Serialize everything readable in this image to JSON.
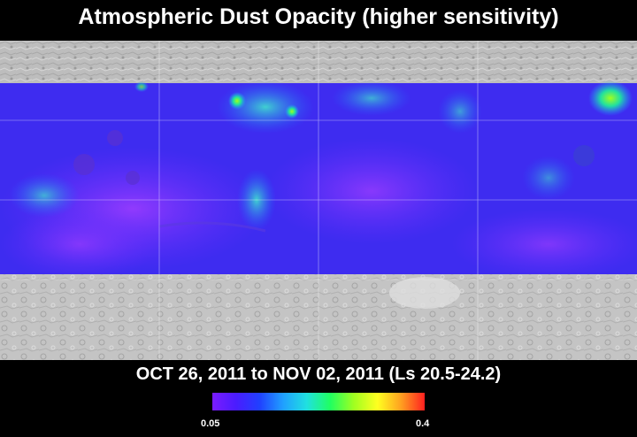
{
  "title": "Atmospheric Dust Opacity (higher sensitivity)",
  "date_range": "OCT 26, 2011 to NOV 02, 2011 (Ls 20.5-24.2)",
  "colorbar": {
    "min_label": "0.05",
    "max_label": "0.4",
    "min_value": 0.05,
    "max_value": 0.4,
    "colors": [
      "#7a1cff",
      "#4a1cff",
      "#2040ff",
      "#20a0ff",
      "#20e0e0",
      "#20ff60",
      "#a0ff20",
      "#ffff20",
      "#ffa020",
      "#ff2020"
    ]
  },
  "map": {
    "north_cap_color": "#c8c8c8",
    "south_cap_color": "#c8c8c8",
    "gridline_color": "#ffffff"
  }
}
